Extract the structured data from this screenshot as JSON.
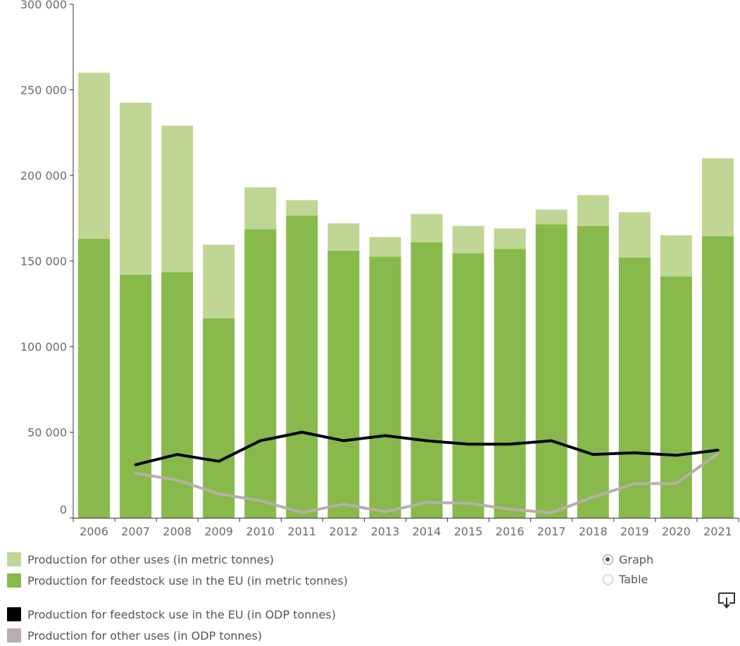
{
  "chart_data": {
    "type": "bar",
    "stacked": true,
    "categories": [
      "2006",
      "2007",
      "2008",
      "2009",
      "2010",
      "2011",
      "2012",
      "2013",
      "2014",
      "2015",
      "2016",
      "2017",
      "2018",
      "2019",
      "2020",
      "2021"
    ],
    "ylim": [
      0,
      300000
    ],
    "y_ticks": [
      {
        "value": 0,
        "label": "0"
      },
      {
        "value": 50000,
        "label": "50 000"
      },
      {
        "value": 100000,
        "label": "100 000"
      },
      {
        "value": 150000,
        "label": "150 000"
      },
      {
        "value": 200000,
        "label": "200 000"
      },
      {
        "value": 250000,
        "label": "250 000"
      },
      {
        "value": 300000,
        "label": "300 000"
      }
    ],
    "grid": false,
    "legend_position": "bottom-left",
    "bar_series": [
      {
        "name": "Production for feedstock use in the EU (in metric tonnes)",
        "color": "#87b94b",
        "values": [
          163000,
          142000,
          143500,
          116500,
          168500,
          176500,
          156000,
          152500,
          161000,
          154500,
          157000,
          171500,
          170500,
          152000,
          141000,
          164500
        ]
      },
      {
        "name": "Production for other uses (in metric tonnes)",
        "color": "#c0d694",
        "values": [
          97000,
          100500,
          85500,
          43000,
          24500,
          9000,
          16000,
          11500,
          16500,
          16000,
          12000,
          8500,
          18000,
          26500,
          24000,
          45500
        ]
      }
    ],
    "line_series": [
      {
        "name": "Production for feedstock use in the EU (in ODP tonnes)",
        "color": "#000000",
        "values": [
          null,
          31000,
          37000,
          33000,
          45000,
          50000,
          45000,
          48000,
          45000,
          43000,
          43000,
          45000,
          37000,
          38000,
          36500,
          39500
        ]
      },
      {
        "name": "Production for other uses (in ODP tonnes)",
        "color": "#b9aeab",
        "values": [
          null,
          26000,
          22000,
          14000,
          10000,
          3000,
          8000,
          3500,
          9000,
          8500,
          5000,
          3000,
          12000,
          20000,
          20000,
          37500
        ]
      }
    ]
  },
  "legend": {
    "items": [
      {
        "label": "Production for other uses (in metric tonnes)",
        "color": "#c0d694"
      },
      {
        "label": "Production for feedstock use in the EU (in metric tonnes)",
        "color": "#87b94b"
      },
      {
        "label": "Production for feedstock use in the EU (in ODP tonnes)",
        "color": "#000000"
      },
      {
        "label": "Production for other uses (in ODP tonnes)",
        "color": "#b9aeab"
      }
    ]
  },
  "view_toggle": {
    "options": [
      {
        "label": "Graph",
        "selected": true
      },
      {
        "label": "Table",
        "selected": false
      }
    ]
  },
  "icons": {
    "download": "download-icon"
  }
}
